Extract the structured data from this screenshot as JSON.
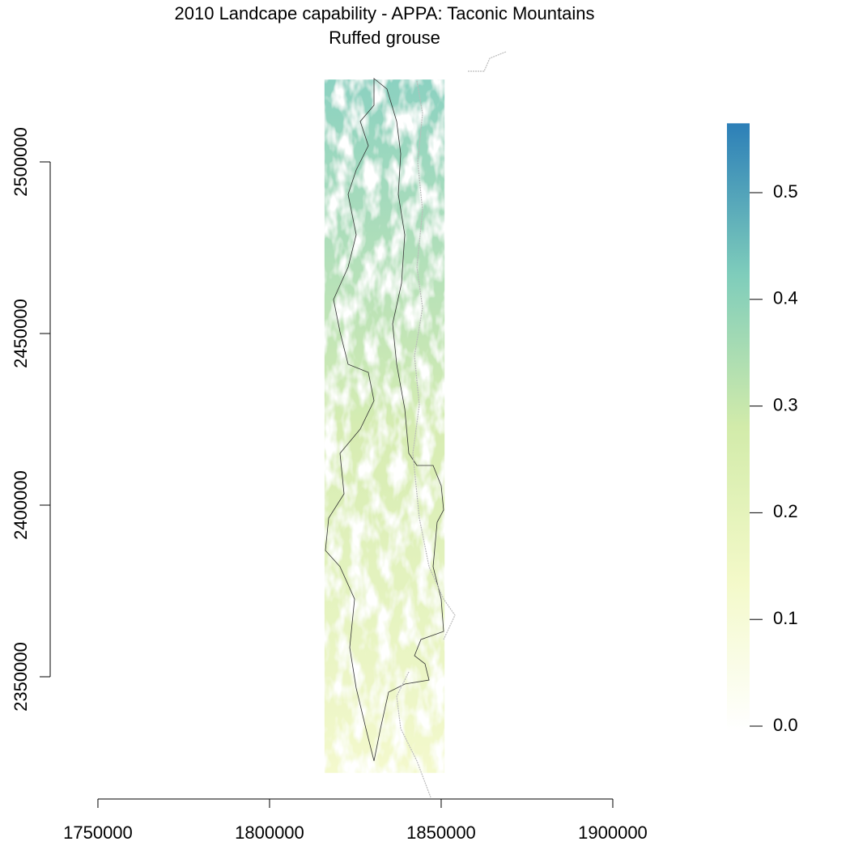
{
  "chart_data": {
    "type": "raster",
    "title": "2010 Landcape capability - APPA: Taconic Mountains",
    "subtitle": "Ruffed grouse",
    "xlim": [
      1736000,
      1918000
    ],
    "ylim": [
      2310000,
      2540000
    ],
    "xticks": [
      1750000,
      1800000,
      1850000,
      1900000
    ],
    "yticks": [
      2350000,
      2400000,
      2450000,
      2500000
    ],
    "raster_x": [
      1816000,
      1851000
    ],
    "raster_y": [
      2322000,
      2524000
    ],
    "zlim": [
      0,
      0.565
    ],
    "zticks": [
      {
        "value": 0,
        "label": "0.0"
      },
      0.1,
      0.2,
      0.3,
      0.4,
      0.5
    ],
    "colors": [
      "#ffffff",
      "#f3f9c8",
      "#d2ebaa",
      "#7fcdbb",
      "#2c7fb8"
    ]
  }
}
